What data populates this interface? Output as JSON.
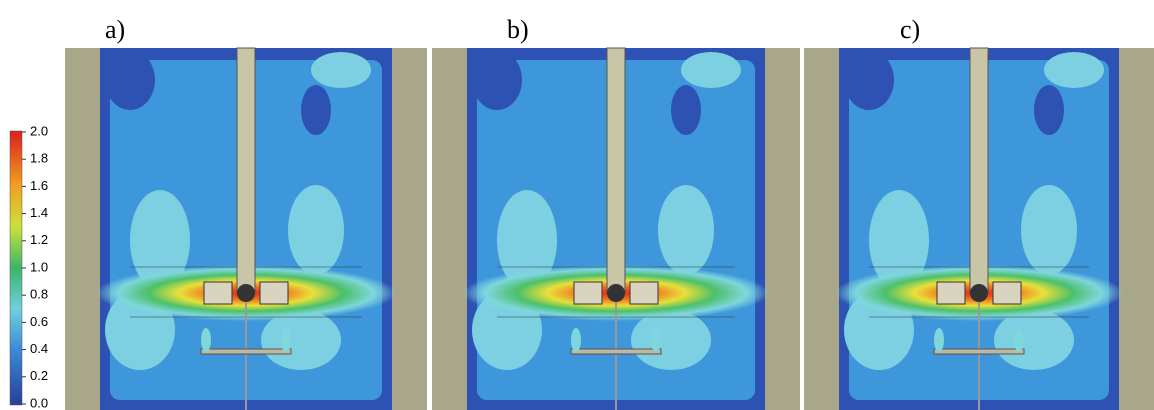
{
  "panels": [
    {
      "label": "a)"
    },
    {
      "label": "b)"
    },
    {
      "label": "c)"
    }
  ],
  "colorbar": {
    "ticks": [
      "0.0",
      "0.2",
      "0.4",
      "0.6",
      "0.8",
      "1.0",
      "1.2",
      "1.4",
      "1.6",
      "1.8",
      "2.0"
    ]
  }
}
